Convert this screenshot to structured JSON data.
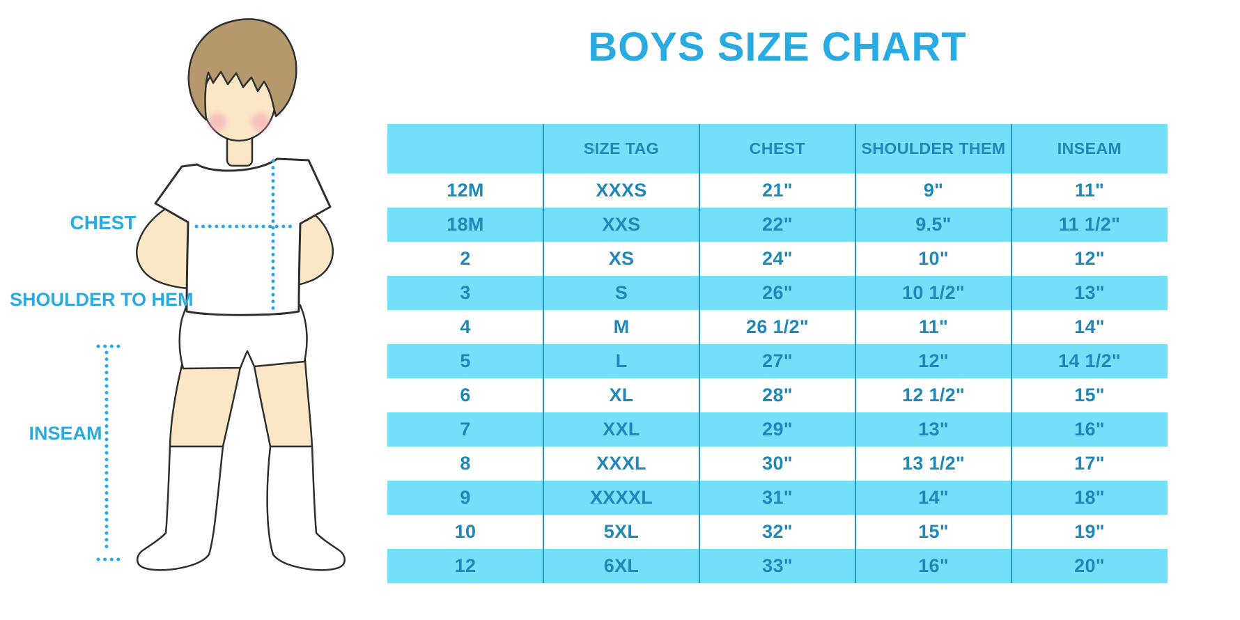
{
  "title": "BOYS SIZE CHART",
  "diagram": {
    "chest_label": "CHEST",
    "shoulder_to_hem_label": "SHOULDER TO HEM",
    "inseam_label": "INSEAM"
  },
  "chart_data": {
    "type": "table",
    "title": "BOYS SIZE CHART",
    "columns": [
      "",
      "SIZE TAG",
      "CHEST",
      "SHOULDER THEM",
      "INSEAM"
    ],
    "rows": [
      [
        "12M",
        "XXXS",
        "21\"",
        "9\"",
        "11\""
      ],
      [
        "18M",
        "XXS",
        "22\"",
        "9.5\"",
        "11 1/2\""
      ],
      [
        "2",
        "XS",
        "24\"",
        "10\"",
        "12\""
      ],
      [
        "3",
        "S",
        "26\"",
        "10 1/2\"",
        "13\""
      ],
      [
        "4",
        "M",
        "26 1/2\"",
        "11\"",
        "14\""
      ],
      [
        "5",
        "L",
        "27\"",
        "12\"",
        "14 1/2\""
      ],
      [
        "6",
        "XL",
        "28\"",
        "12 1/2\"",
        "15\""
      ],
      [
        "7",
        "XXL",
        "29\"",
        "13\"",
        "16\""
      ],
      [
        "8",
        "XXXL",
        "30\"",
        "13 1/2\"",
        "17\""
      ],
      [
        "9",
        "XXXXL",
        "31\"",
        "14\"",
        "18\""
      ],
      [
        "10",
        "5XL",
        "32\"",
        "15\"",
        "19\""
      ],
      [
        "12",
        "6XL",
        "33\"",
        "16\"",
        "20\""
      ]
    ]
  },
  "colors": {
    "accent": "#29ABE2",
    "row_band": "#73DFF8",
    "table_text": "#1F88B8",
    "column_divider": "#2196C2",
    "skin": "#FBE7C6",
    "hair": "#B5986B",
    "outline": "#2F2F2F",
    "blush": "#F3A3B8"
  }
}
